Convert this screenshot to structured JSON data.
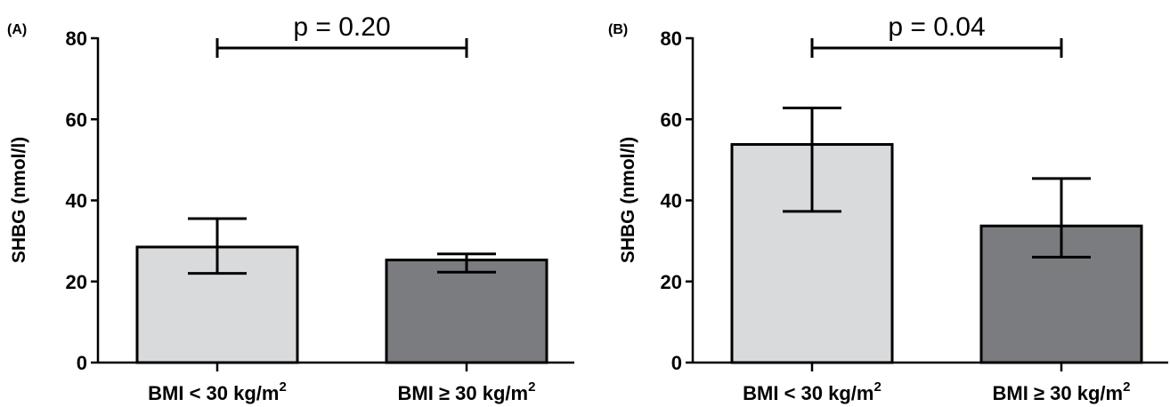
{
  "colors": {
    "bar_light": "#d9dadc",
    "bar_dark": "#7b7c80",
    "axis": "#000000"
  },
  "chart_data": [
    {
      "type": "bar",
      "panel_label": "(A)",
      "ylabel": "SHBG (nmol/l)",
      "ylim": [
        0,
        80
      ],
      "yticks": [
        "0",
        "20",
        "40",
        "60",
        "80"
      ],
      "categories": [
        {
          "text": "BMI < 30 kg/m",
          "sup": "2"
        },
        {
          "text": "BMI ≥ 30 kg/m",
          "sup": "2"
        }
      ],
      "values": [
        28.5,
        25.3
      ],
      "error_low": [
        22.0,
        22.3
      ],
      "error_high": [
        35.5,
        26.8
      ],
      "bar_colors": [
        "bar_light",
        "bar_dark"
      ],
      "annotation": "p = 0.20"
    },
    {
      "type": "bar",
      "panel_label": "(B)",
      "ylabel": "SHBG (nmol/l)",
      "ylim": [
        0,
        80
      ],
      "yticks": [
        "0",
        "20",
        "40",
        "60",
        "80"
      ],
      "categories": [
        {
          "text": "BMI < 30 kg/m",
          "sup": "2"
        },
        {
          "text": "BMI ≥ 30 kg/m",
          "sup": "2"
        }
      ],
      "values": [
        53.8,
        33.7
      ],
      "error_low": [
        37.3,
        26.0
      ],
      "error_high": [
        62.8,
        45.4
      ],
      "bar_colors": [
        "bar_light",
        "bar_dark"
      ],
      "annotation": "p = 0.04"
    }
  ]
}
